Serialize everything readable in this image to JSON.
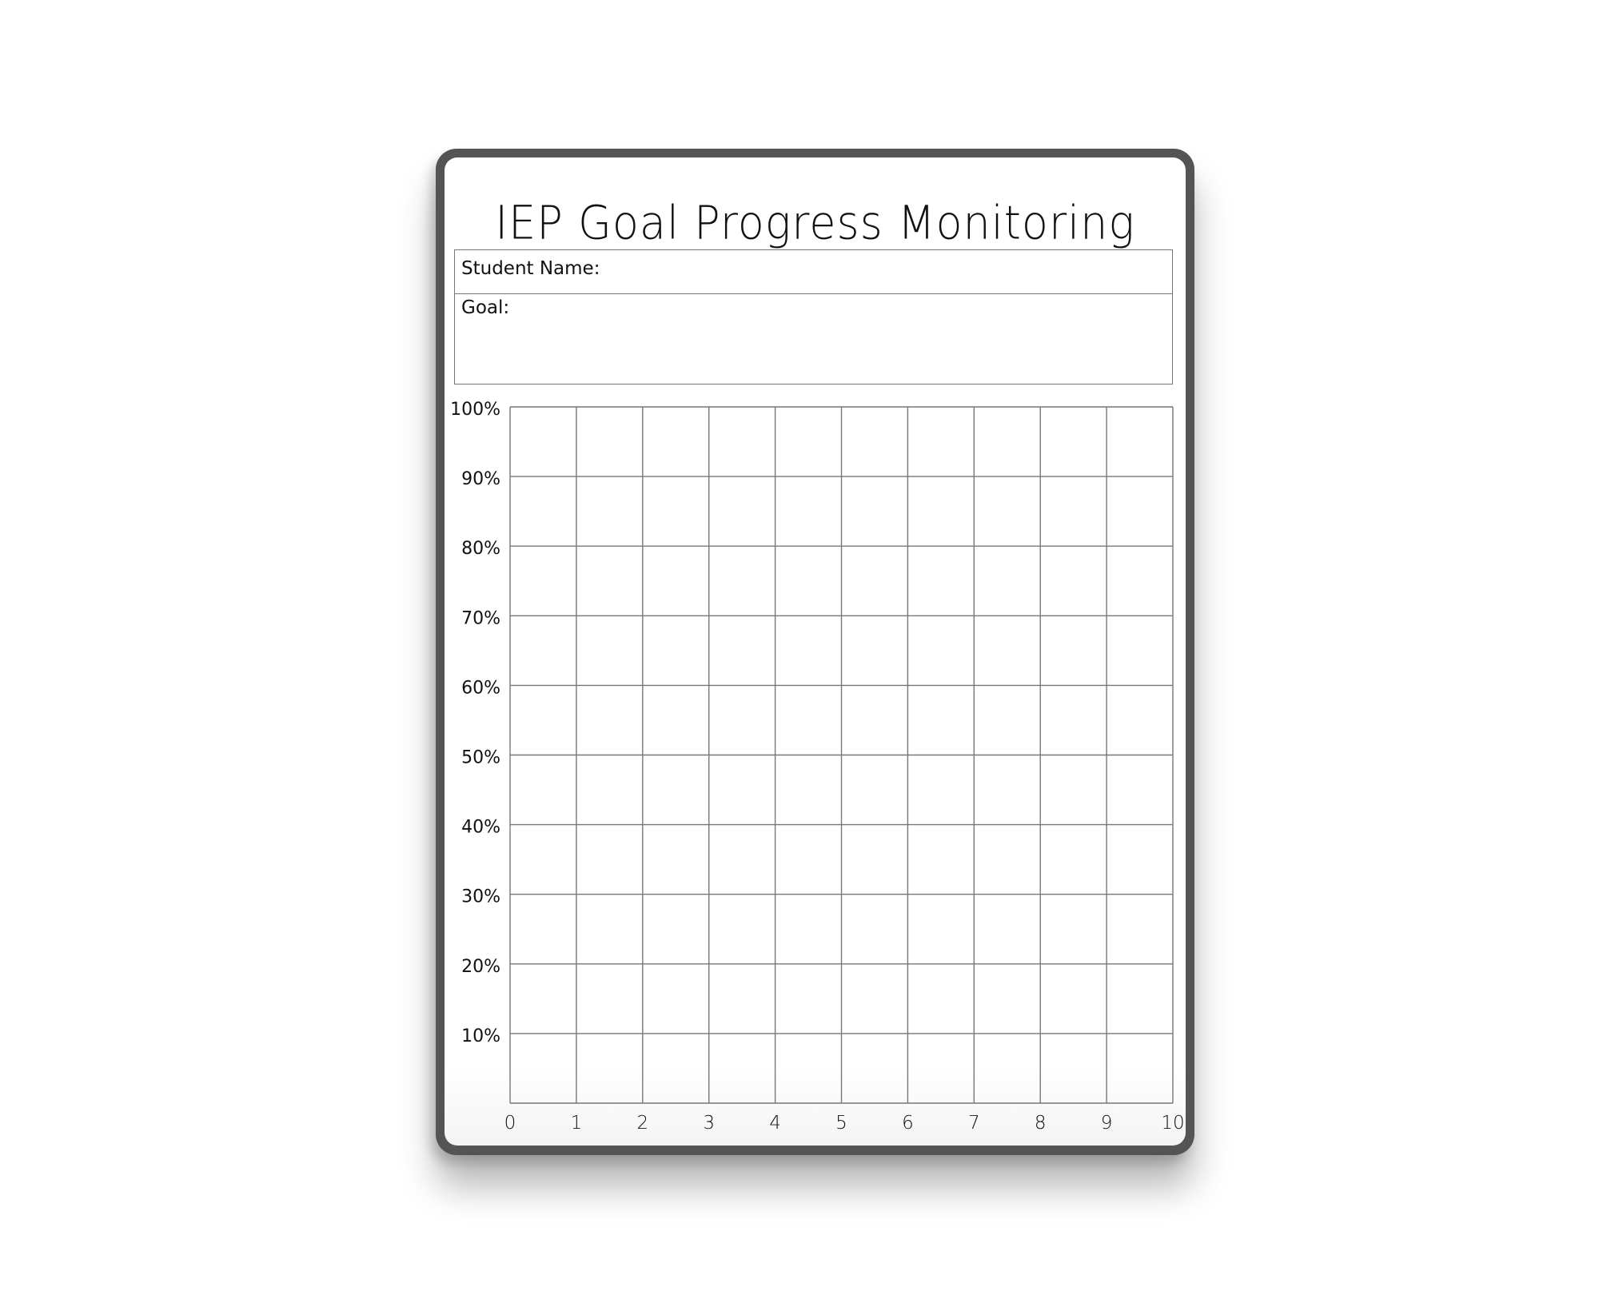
{
  "title": "IEP Goal Progress Monitoring",
  "fields": {
    "student_name_label": "Student Name:",
    "goal_label": "Goal:"
  },
  "chart_data": {
    "type": "line",
    "title": "",
    "x_ticks": [
      "0",
      "1",
      "2",
      "3",
      "4",
      "5",
      "6",
      "7",
      "8",
      "9",
      "10"
    ],
    "y_ticks": [
      "10%",
      "20%",
      "30%",
      "40%",
      "50%",
      "60%",
      "70%",
      "80%",
      "90%",
      "100%"
    ],
    "xlim": [
      0,
      10
    ],
    "ylim": [
      0,
      100
    ],
    "grid": true,
    "series": []
  },
  "colors": {
    "frame": "#555452",
    "grid": "#777777",
    "text": "#111111"
  }
}
